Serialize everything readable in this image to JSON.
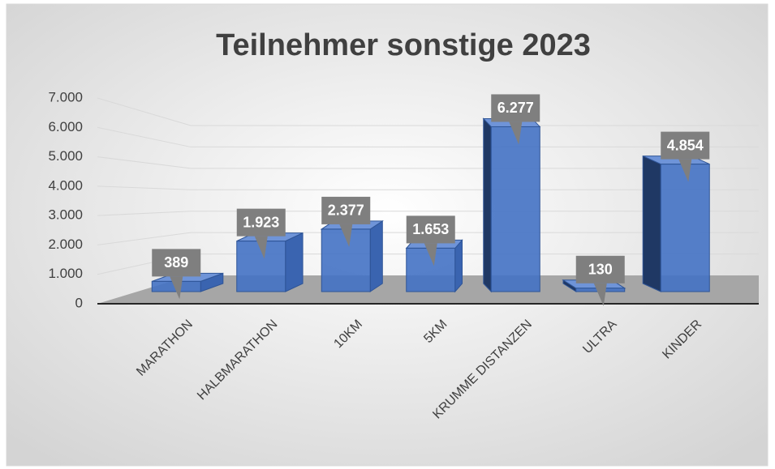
{
  "chart_data": {
    "type": "bar",
    "title": "Teilnehmer sonstige 2023",
    "categories": [
      "MARATHON",
      "HALBMARATHON",
      "10KM",
      "5KM",
      "KRUMME DISTANZEN",
      "ULTRA",
      "KINDER"
    ],
    "values": [
      389,
      1923,
      2377,
      1653,
      6277,
      130,
      4854
    ],
    "value_labels": [
      "389",
      "1.923",
      "2.377",
      "1.653",
      "6.277",
      "130",
      "4.854"
    ],
    "color": "#4472c4",
    "ylim": [
      0,
      7000
    ],
    "yticks": [
      0,
      {
        "value": 1000,
        "label": "1.000"
      },
      {
        "value": 2000,
        "label": "2.000"
      },
      {
        "value": 3000,
        "label": "3.000"
      },
      {
        "value": 4000,
        "label": "4.000"
      },
      {
        "value": 5000,
        "label": "5.000"
      },
      {
        "value": 6000,
        "label": "6.000"
      },
      {
        "value": 7000,
        "label": "7.000"
      }
    ],
    "grid": true
  }
}
